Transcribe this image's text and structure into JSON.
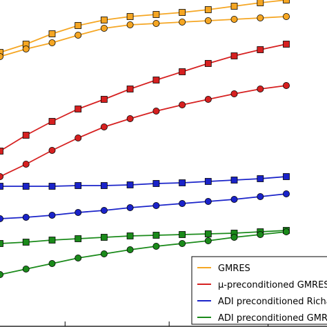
{
  "chart_data": {
    "type": "line",
    "title": "",
    "xlabel": "",
    "ylabel": "",
    "x": [
      1,
      2,
      3,
      4,
      5,
      6,
      7,
      8,
      9,
      10,
      11,
      12
    ],
    "xlim": [
      1,
      12
    ],
    "ylim": [
      0,
      474
    ],
    "grid": false,
    "legend_position": "bottom-right",
    "series": [
      {
        "name": "GMRES",
        "color": "#f5a623",
        "marker": "square",
        "values": [
          398,
          410,
          425,
          437,
          445,
          450,
          453,
          456,
          460,
          465,
          470,
          474
        ]
      },
      {
        "name": "GMRES",
        "color": "#f5a623",
        "marker": "circle",
        "values": [
          392,
          403,
          412,
          423,
          433,
          438,
          440,
          442,
          444,
          446,
          448,
          450
        ]
      },
      {
        "name": "μ-preconditioned GMRES",
        "color": "#d62020",
        "marker": "square",
        "values": [
          255,
          278,
          298,
          316,
          330,
          345,
          358,
          370,
          382,
          393,
          402,
          410
        ]
      },
      {
        "name": "μ-preconditioned GMRES",
        "color": "#d62020",
        "marker": "circle",
        "values": [
          218,
          236,
          256,
          274,
          290,
          302,
          313,
          322,
          330,
          338,
          345,
          350
        ]
      },
      {
        "name": "ADI preconditioned Richardson",
        "color": "#1a23c9",
        "marker": "square",
        "values": [
          204,
          204,
          204,
          205,
          205,
          206,
          208,
          209,
          211,
          213,
          215,
          218
        ]
      },
      {
        "name": "ADI preconditioned Richardson",
        "color": "#1a23c9",
        "marker": "circle",
        "values": [
          157,
          159,
          162,
          166,
          169,
          173,
          176,
          179,
          182,
          185,
          189,
          193
        ]
      },
      {
        "name": "ADI preconditioned GMRES",
        "color": "#1a8a1a",
        "marker": "square",
        "values": [
          121,
          123,
          126,
          128,
          130,
          132,
          133,
          134,
          135,
          136,
          138,
          140
        ]
      },
      {
        "name": "ADI preconditioned GMRES",
        "color": "#1a8a1a",
        "marker": "circle",
        "values": [
          76,
          84,
          92,
          100,
          106,
          112,
          117,
          121,
          125,
          130,
          134,
          138
        ]
      }
    ],
    "legend": [
      {
        "label": "GMRES",
        "color": "#f5a623"
      },
      {
        "label": "μ-preconditioned GMRES",
        "color": "#d62020"
      },
      {
        "label": "ADI preconditioned Richardson",
        "color": "#1a23c9"
      },
      {
        "label": "ADI preconditioned GMRES",
        "color": "#1a8a1a"
      }
    ]
  }
}
